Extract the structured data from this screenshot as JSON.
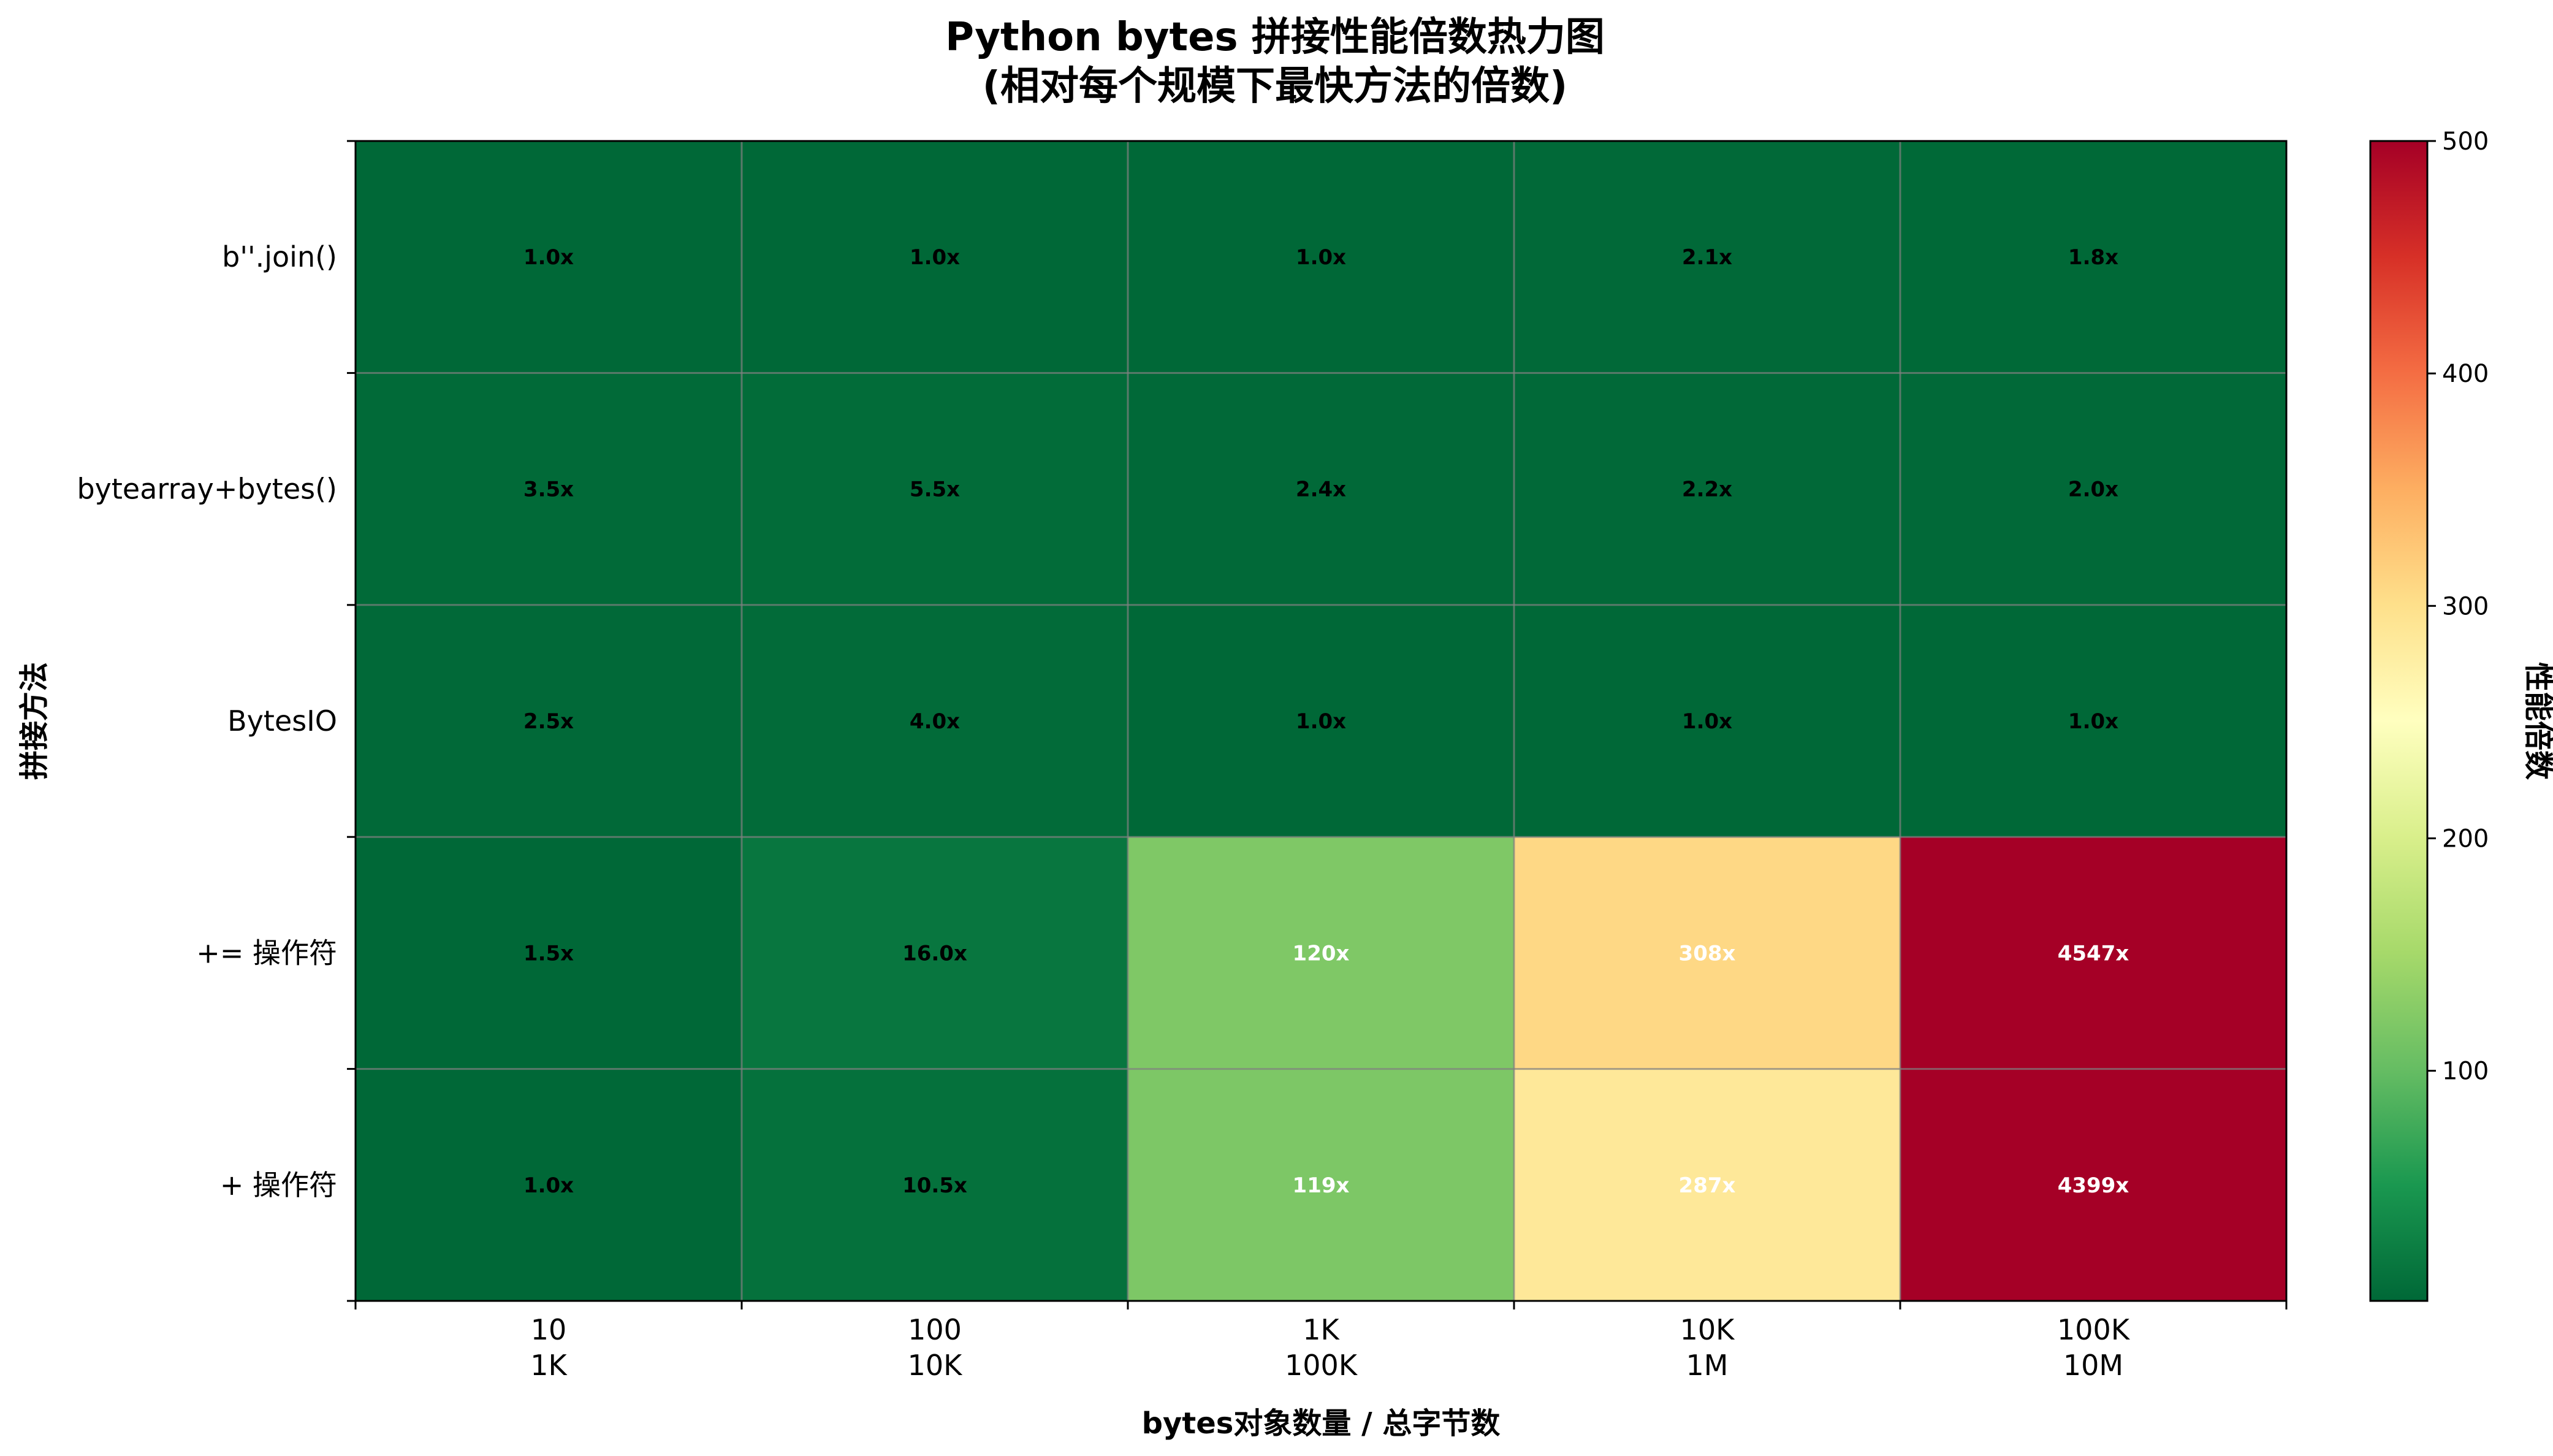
{
  "chart_data": {
    "type": "heatmap",
    "title": "Python bytes 拼接性能倍数热力图",
    "subtitle": "(相对每个规模下最快方法的倍数)",
    "xlabel": "bytes对象数量 / 总字节数",
    "ylabel": "拼接方法",
    "colorbar_label": "性能倍数",
    "x_categories": [
      {
        "line1": "10",
        "line2": "1K"
      },
      {
        "line1": "100",
        "line2": "10K"
      },
      {
        "line1": "1K",
        "line2": "100K"
      },
      {
        "line1": "10K",
        "line2": "1M"
      },
      {
        "line1": "100K",
        "line2": "10M"
      }
    ],
    "y_categories": [
      "b''.join()",
      "bytearray+bytes()",
      "BytesIO",
      "+= 操作符",
      "+ 操作符"
    ],
    "values": [
      [
        1.0,
        1.0,
        1.0,
        2.1,
        1.8
      ],
      [
        3.5,
        5.5,
        2.4,
        2.2,
        2.0
      ],
      [
        2.5,
        4.0,
        1.0,
        1.0,
        1.0
      ],
      [
        1.5,
        16.0,
        120,
        308,
        4547
      ],
      [
        1.0,
        10.5,
        119,
        287,
        4399
      ]
    ],
    "cell_labels": [
      [
        "1.0x",
        "1.0x",
        "1.0x",
        "2.1x",
        "1.8x"
      ],
      [
        "3.5x",
        "5.5x",
        "2.4x",
        "2.2x",
        "2.0x"
      ],
      [
        "2.5x",
        "4.0x",
        "1.0x",
        "1.0x",
        "1.0x"
      ],
      [
        "1.5x",
        "16.0x",
        "120x",
        "308x",
        "4547x"
      ],
      [
        "1.0x",
        "10.5x",
        "119x",
        "287x",
        "4399x"
      ]
    ],
    "color_range": [
      1,
      500
    ],
    "colormap": "RdYlGn_r",
    "colorbar_ticks": [
      100,
      200,
      300,
      400,
      500
    ],
    "grid": true,
    "colorbar_position": "right"
  }
}
